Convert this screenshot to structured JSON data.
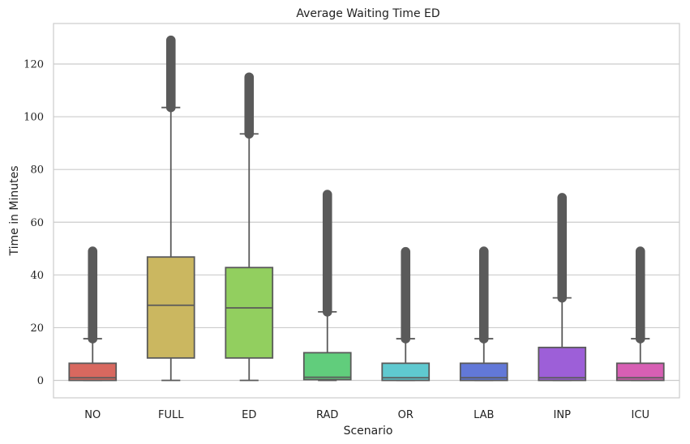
{
  "chart_data": {
    "type": "box",
    "title": "Average Waiting Time ED",
    "xlabel": "Scenario",
    "ylabel": "Time in Minutes",
    "ylim": [
      -6,
      135
    ],
    "yticks": [
      0,
      20,
      40,
      60,
      80,
      100,
      120
    ],
    "grid": "horizontal",
    "categories": [
      "NO",
      "FULL",
      "ED",
      "RAD",
      "OR",
      "LAB",
      "INP",
      "ICU"
    ],
    "colors": [
      "#d8685f",
      "#cbb760",
      "#92cf5f",
      "#61cd7c",
      "#5fc9d0",
      "#6278d8",
      "#9d5fd8",
      "#d75fb4"
    ],
    "outlier_color": "#5a5a5a",
    "boxes": [
      {
        "whislo": 0,
        "q1": 0,
        "med": 1,
        "q3": 6.5,
        "whishi": 15.8,
        "outlier_min": 15.8,
        "outlier_max": 49
      },
      {
        "whislo": 0,
        "q1": 8.5,
        "med": 28.5,
        "q3": 46.8,
        "whishi": 103.5,
        "outlier_min": 103.5,
        "outlier_max": 129
      },
      {
        "whislo": 0,
        "q1": 8.5,
        "med": 27.5,
        "q3": 42.8,
        "whishi": 93.5,
        "outlier_min": 93.5,
        "outlier_max": 115
      },
      {
        "whislo": 0,
        "q1": 0.3,
        "med": 1.2,
        "q3": 10.5,
        "whishi": 26,
        "outlier_min": 26,
        "outlier_max": 70.5
      },
      {
        "whislo": 0,
        "q1": 0,
        "med": 1,
        "q3": 6.5,
        "whishi": 15.8,
        "outlier_min": 15.8,
        "outlier_max": 48.8
      },
      {
        "whislo": 0,
        "q1": 0,
        "med": 1,
        "q3": 6.5,
        "whishi": 15.8,
        "outlier_min": 15.8,
        "outlier_max": 49
      },
      {
        "whislo": 0,
        "q1": 0,
        "med": 1,
        "q3": 12.5,
        "whishi": 31.3,
        "outlier_min": 31.3,
        "outlier_max": 69.3
      },
      {
        "whislo": 0,
        "q1": 0,
        "med": 1,
        "q3": 6.5,
        "whishi": 15.8,
        "outlier_min": 15.8,
        "outlier_max": 49
      }
    ]
  }
}
